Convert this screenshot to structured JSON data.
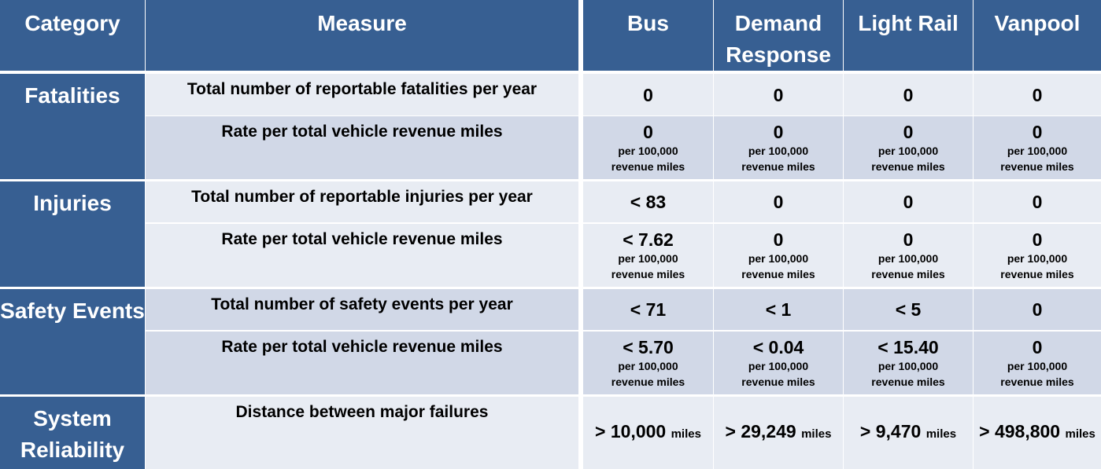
{
  "header": {
    "category": "Category",
    "measure": "Measure",
    "modes": [
      "Bus",
      "Demand Response",
      "Light Rail",
      "Vanpool"
    ]
  },
  "sections": [
    {
      "category": "Fatalities",
      "measures": [
        {
          "measure": "Total number of reportable fatalities per year",
          "values": [
            {
              "value": "0"
            },
            {
              "value": "0"
            },
            {
              "value": "0"
            },
            {
              "value": "0"
            }
          ]
        },
        {
          "measure": "Rate per total vehicle revenue miles",
          "values": [
            {
              "value": "0",
              "unit": "per 100,000\nrevenue miles"
            },
            {
              "value": "0",
              "unit": "per 100,000\nrevenue miles"
            },
            {
              "value": "0",
              "unit": "per 100,000\nrevenue miles"
            },
            {
              "value": "0",
              "unit": "per 100,000\nrevenue miles"
            }
          ]
        }
      ]
    },
    {
      "category": "Injuries",
      "measures": [
        {
          "measure": "Total number of reportable injuries per year",
          "values": [
            {
              "value": "< 83"
            },
            {
              "value": "0"
            },
            {
              "value": "0"
            },
            {
              "value": "0"
            }
          ]
        },
        {
          "measure": "Rate per total vehicle revenue miles",
          "values": [
            {
              "value": "< 7.62",
              "unit": "per 100,000\nrevenue miles"
            },
            {
              "value": "0",
              "unit": "per 100,000\nrevenue miles"
            },
            {
              "value": "0",
              "unit": "per 100,000\nrevenue miles"
            },
            {
              "value": "0",
              "unit": "per 100,000\nrevenue miles"
            }
          ]
        }
      ]
    },
    {
      "category": "Safety Events",
      "measures": [
        {
          "measure": "Total number of safety events per year",
          "values": [
            {
              "value": "< 71"
            },
            {
              "value": "< 1"
            },
            {
              "value": "< 5"
            },
            {
              "value": "0"
            }
          ]
        },
        {
          "measure": "Rate per total vehicle revenue miles",
          "values": [
            {
              "value": "< 5.70",
              "unit": "per 100,000\nrevenue miles"
            },
            {
              "value": "< 0.04",
              "unit": "per 100,000\nrevenue miles"
            },
            {
              "value": "< 15.40",
              "unit": "per 100,000\nrevenue miles"
            },
            {
              "value": "0",
              "unit": "per 100,000\nrevenue miles"
            }
          ]
        }
      ]
    },
    {
      "category": "System Reliability",
      "measures": [
        {
          "measure": "Distance between major failures",
          "values": [
            {
              "value": "> 10,000",
              "inline_unit": "miles"
            },
            {
              "value": "> 29,249",
              "inline_unit": "miles"
            },
            {
              "value": "> 9,470",
              "inline_unit": "miles"
            },
            {
              "value": "> 498,800",
              "inline_unit": "miles"
            }
          ]
        }
      ]
    }
  ]
}
